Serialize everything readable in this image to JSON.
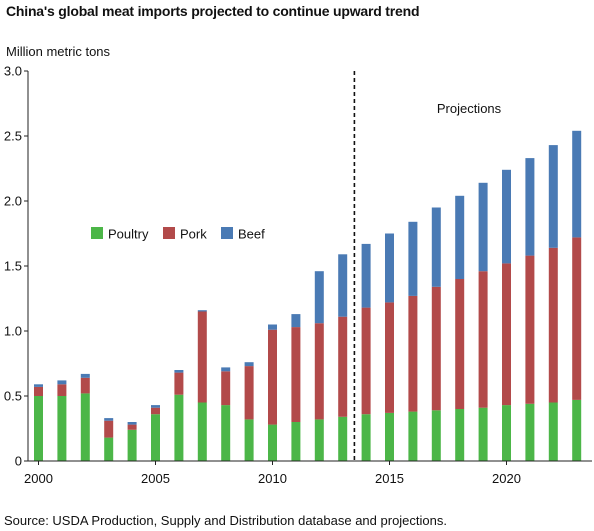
{
  "chart_data": {
    "type": "bar",
    "stacked": true,
    "title": "China's global meat imports projected to continue upward trend",
    "ylabel": "Million metric tons",
    "xlabel": "",
    "ylim": [
      0,
      3.0
    ],
    "yticks": [
      "0",
      "0.5",
      "1.0",
      "1.5",
      "2.0",
      "2.5",
      "3.0"
    ],
    "xticks": [
      {
        "year": 2000,
        "label": "2000"
      },
      {
        "year": 2005,
        "label": "2005"
      },
      {
        "year": 2010,
        "label": "2010"
      },
      {
        "year": 2015,
        "label": "2015"
      },
      {
        "year": 2020,
        "label": "2020"
      }
    ],
    "categories": [
      2000,
      2001,
      2002,
      2003,
      2004,
      2005,
      2006,
      2007,
      2008,
      2009,
      2010,
      2011,
      2012,
      2013,
      2014,
      2015,
      2016,
      2017,
      2018,
      2019,
      2020,
      2021,
      2022,
      2023
    ],
    "series": [
      {
        "name": "Poultry",
        "color": "#4cb648",
        "values": [
          0.5,
          0.5,
          0.52,
          0.18,
          0.24,
          0.36,
          0.51,
          0.45,
          0.43,
          0.32,
          0.28,
          0.3,
          0.32,
          0.34,
          0.36,
          0.37,
          0.38,
          0.39,
          0.4,
          0.41,
          0.43,
          0.44,
          0.45,
          0.47
        ]
      },
      {
        "name": "Pork",
        "color": "#b24a4a",
        "values": [
          0.07,
          0.09,
          0.12,
          0.13,
          0.04,
          0.05,
          0.17,
          0.7,
          0.26,
          0.41,
          0.73,
          0.73,
          0.74,
          0.77,
          0.82,
          0.85,
          0.89,
          0.95,
          1.0,
          1.05,
          1.09,
          1.14,
          1.19,
          1.25
        ]
      },
      {
        "name": "Beef",
        "color": "#4a7ab4",
        "values": [
          0.02,
          0.03,
          0.03,
          0.02,
          0.02,
          0.02,
          0.02,
          0.01,
          0.03,
          0.03,
          0.04,
          0.1,
          0.4,
          0.48,
          0.49,
          0.53,
          0.57,
          0.61,
          0.64,
          0.68,
          0.72,
          0.75,
          0.79,
          0.82
        ]
      }
    ],
    "projection_start_after": 2013,
    "annotation": "Projections",
    "legend_placement": "middle-left",
    "grid": false,
    "source": "Source: USDA Production, Supply and Distribution database and projections."
  }
}
